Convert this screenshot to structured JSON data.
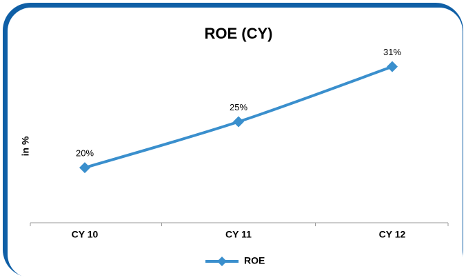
{
  "chart_data": {
    "type": "line",
    "title": "ROE (CY)",
    "y_label": "in %",
    "categories": [
      "CY 10",
      "CY 11",
      "CY 12"
    ],
    "series": [
      {
        "name": "ROE",
        "color": "#3a8fcd",
        "values": [
          20,
          25,
          31
        ],
        "value_labels": [
          "20%",
          "25%",
          "31%"
        ]
      }
    ],
    "ylim": [
      14,
      33
    ],
    "legend": "bottom"
  }
}
